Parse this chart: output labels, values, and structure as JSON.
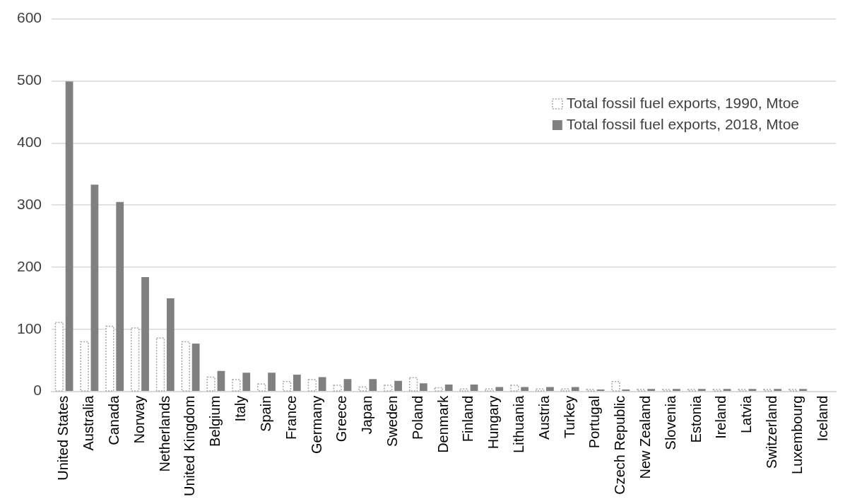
{
  "chart_data": {
    "type": "bar",
    "categories": [
      "United States",
      "Australia",
      "Canada",
      "Norway",
      "Netherlands",
      "United Kingdom",
      "Belgium",
      "Italy",
      "Spain",
      "France",
      "Germany",
      "Greece",
      "Japan",
      "Sweden",
      "Poland",
      "Denmark",
      "Finland",
      "Hungary",
      "Lithuania",
      "Austria",
      "Turkey",
      "Portugal",
      "Czech Republic",
      "New Zealand",
      "Slovenia",
      "Estonia",
      "Ireland",
      "Latvia",
      "Switzerland",
      "Luxembourg",
      "Iceland"
    ],
    "series": [
      {
        "name": "Total fossil fuel exports, 1990, Mtoe",
        "color": "#a6a6a6",
        "line_style": "dotted",
        "values": [
          111,
          80,
          105,
          102,
          86,
          80,
          23,
          19,
          12,
          16,
          19,
          10,
          7,
          10,
          22,
          6,
          4,
          4,
          10,
          4,
          4,
          3,
          16,
          3,
          3,
          3,
          3,
          3,
          3,
          3,
          0
        ]
      },
      {
        "name": "Total fossil fuel exports, 2018, Mtoe",
        "color": "#808080",
        "values": [
          499,
          333,
          305,
          184,
          150,
          77,
          33,
          30,
          30,
          27,
          23,
          20,
          20,
          17,
          13,
          11,
          11,
          7,
          7,
          7,
          7,
          3,
          3,
          4,
          4,
          4,
          4,
          4,
          4,
          4,
          0
        ]
      }
    ],
    "ylim": [
      0,
      600
    ],
    "yticks": [
      0,
      100,
      200,
      300,
      400,
      500,
      600
    ],
    "grid": "y",
    "legend": "top right"
  }
}
